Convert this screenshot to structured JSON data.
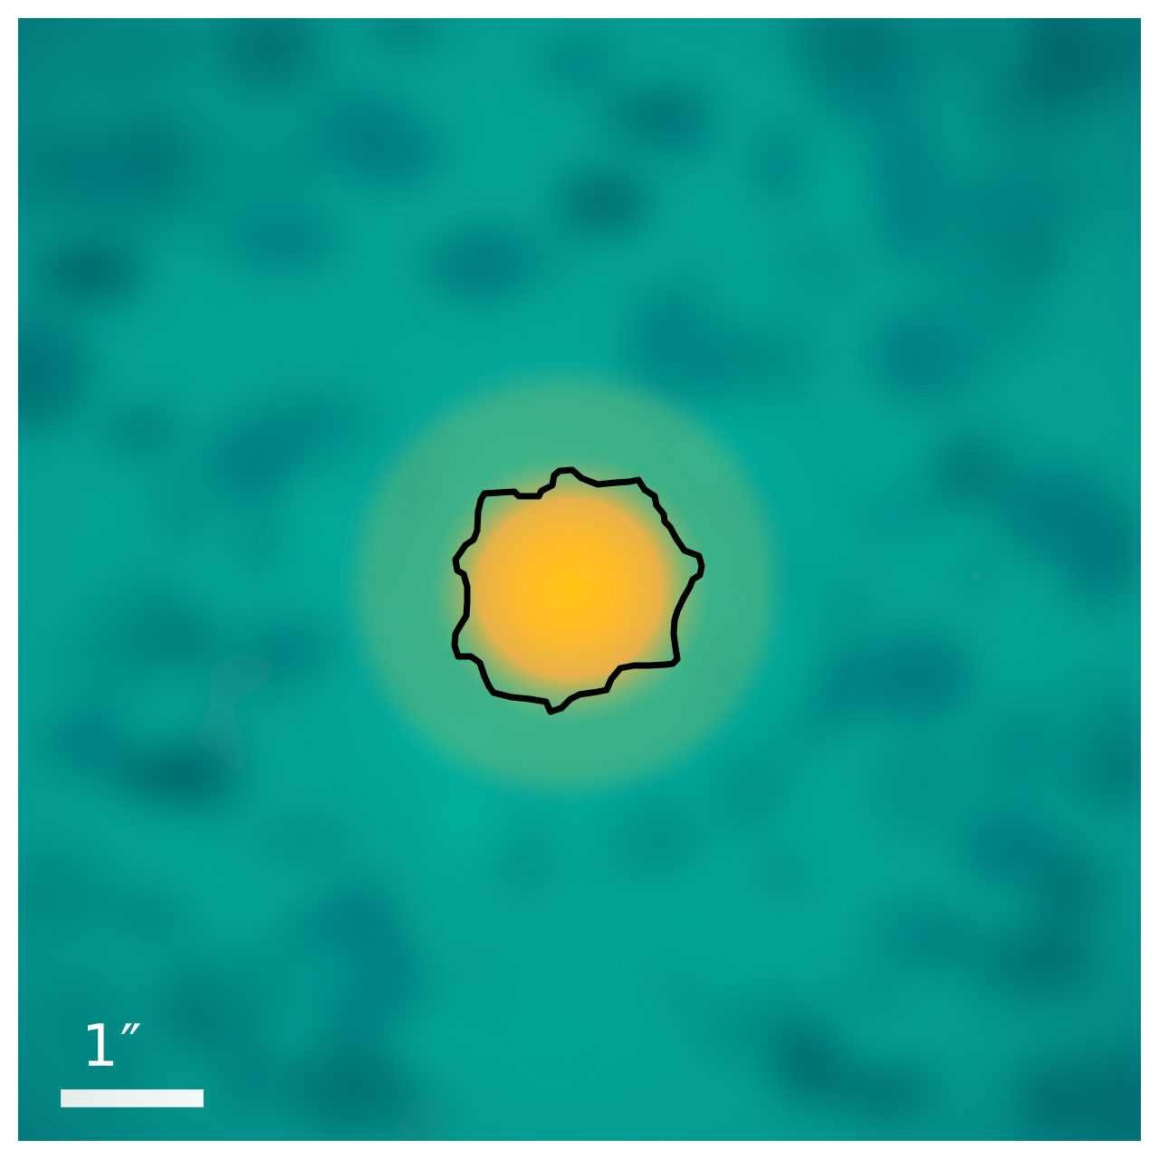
{
  "image": {
    "scale_bar": {
      "label": "1″",
      "length_arcsec": 1
    },
    "colors": {
      "background_dark": "#045a63",
      "background_mid": "#00a597",
      "background_light": "#00b8a4",
      "halo": "#4fb688",
      "core": "#ffc21a",
      "contour": "#000000",
      "scale_bar": "#eef3f3",
      "frame": "#ffffff"
    }
  }
}
